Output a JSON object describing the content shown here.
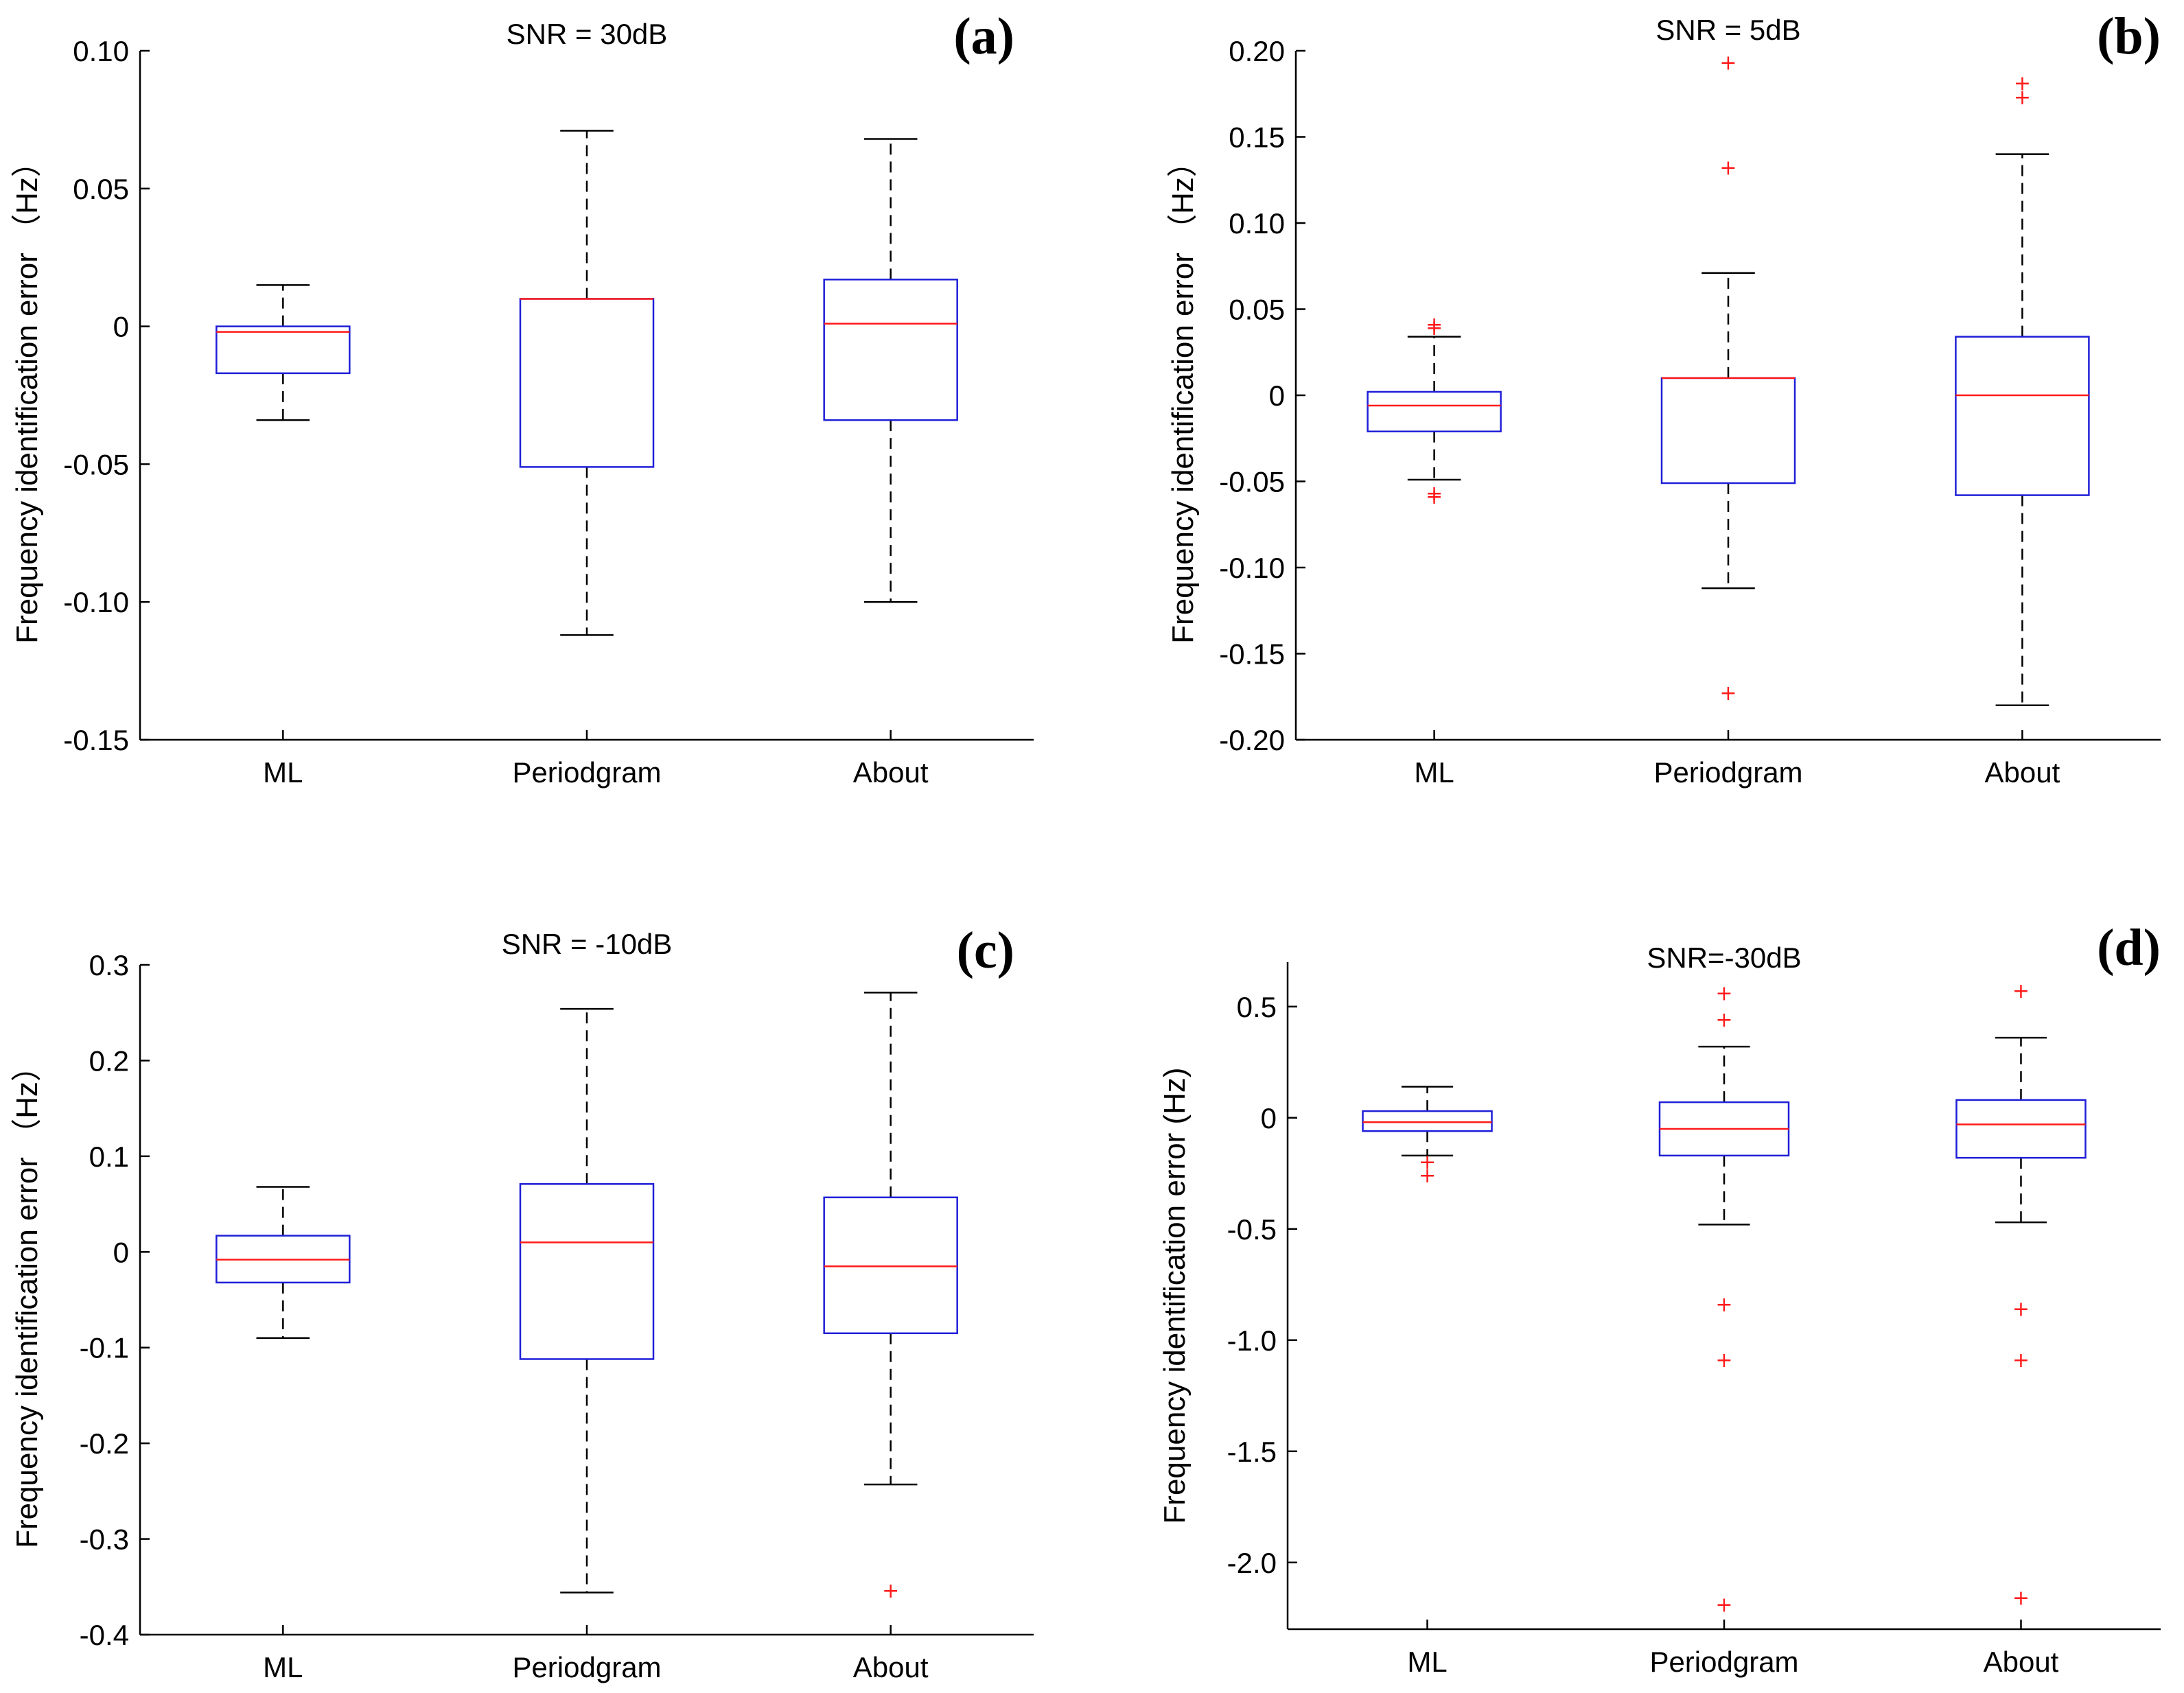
{
  "colors": {
    "box": "#1f1fd8",
    "median": "#ff1a1a",
    "outlier": "#ff1a1a",
    "axis": "#000000"
  },
  "chart_data": [
    {
      "type": "box",
      "panel": "(a)",
      "title": "SNR = 30dB",
      "ylabel": "Frequency identification error   （Hz）",
      "ylim": [
        -0.15,
        0.1
      ],
      "yticks": [
        0.1,
        0.05,
        0,
        -0.05,
        -0.1,
        -0.15
      ],
      "ytick_labels": [
        "0.10",
        "0.05",
        "0",
        "-0.05",
        "-0.10",
        "-0.15"
      ],
      "categories": [
        "ML",
        "Periodgram",
        "About"
      ],
      "boxes": [
        {
          "name": "ML",
          "whisker_low": -0.034,
          "q1": -0.017,
          "median": -0.002,
          "q3": 0.0,
          "whisker_high": 0.015,
          "outliers": []
        },
        {
          "name": "Periodgram",
          "whisker_low": -0.112,
          "q1": -0.051,
          "median": 0.01,
          "q3": 0.01,
          "whisker_high": 0.071,
          "outliers": []
        },
        {
          "name": "About",
          "whisker_low": -0.1,
          "q1": -0.034,
          "median": 0.001,
          "q3": 0.017,
          "whisker_high": 0.068,
          "outliers": []
        }
      ]
    },
    {
      "type": "box",
      "panel": "(b)",
      "title": "SNR = 5dB",
      "ylabel": "Frequency identification error   （Hz）",
      "ylim": [
        -0.2,
        0.2
      ],
      "yticks": [
        0.2,
        0.15,
        0.1,
        0.05,
        0,
        -0.05,
        -0.1,
        -0.15,
        -0.2
      ],
      "ytick_labels": [
        "0.20",
        "0.15",
        "0.10",
        "0.05",
        "0",
        "-0.05",
        "-0.10",
        "-0.15",
        "-0.20"
      ],
      "categories": [
        "ML",
        "Periodgram",
        "About"
      ],
      "boxes": [
        {
          "name": "ML",
          "whisker_low": -0.049,
          "q1": -0.021,
          "median": -0.006,
          "q3": 0.002,
          "whisker_high": 0.034,
          "outliers": [
            0.039,
            0.041,
            -0.057,
            -0.059
          ]
        },
        {
          "name": "Periodgram",
          "whisker_low": -0.112,
          "q1": -0.051,
          "median": 0.01,
          "q3": 0.01,
          "whisker_high": 0.071,
          "outliers": [
            0.193,
            0.132,
            -0.173
          ]
        },
        {
          "name": "About",
          "whisker_low": -0.18,
          "q1": -0.058,
          "median": 0.0,
          "q3": 0.034,
          "whisker_high": 0.14,
          "outliers": [
            0.181,
            0.173
          ]
        }
      ]
    },
    {
      "type": "box",
      "panel": "(c)",
      "title": "SNR = -10dB",
      "ylabel": "Frequency identification error   （Hz）",
      "ylim": [
        -0.4,
        0.3
      ],
      "yticks": [
        0.3,
        0.2,
        0.1,
        0,
        -0.1,
        -0.2,
        -0.3,
        -0.4
      ],
      "ytick_labels": [
        "0.3",
        "0.2",
        "0.1",
        "0",
        "-0.1",
        "-0.2",
        "-0.3",
        "-0.4"
      ],
      "categories": [
        "ML",
        "Periodgram",
        "About"
      ],
      "boxes": [
        {
          "name": "ML",
          "whisker_low": -0.09,
          "q1": -0.032,
          "median": -0.008,
          "q3": 0.017,
          "whisker_high": 0.068,
          "outliers": []
        },
        {
          "name": "Periodgram",
          "whisker_low": -0.356,
          "q1": -0.112,
          "median": 0.01,
          "q3": 0.071,
          "whisker_high": 0.254,
          "outliers": []
        },
        {
          "name": "About",
          "whisker_low": -0.243,
          "q1": -0.085,
          "median": -0.015,
          "q3": 0.057,
          "whisker_high": 0.271,
          "outliers": [
            -0.354
          ]
        }
      ]
    },
    {
      "type": "box",
      "panel": "(d)",
      "title": "SNR=-30dB",
      "ylabel": "Frequency identification error   (Hz)",
      "ylim": [
        -2.3,
        0.7
      ],
      "yticks": [
        0.5,
        0,
        -0.5,
        -1.0,
        -1.5,
        -2.0
      ],
      "ytick_labels": [
        "0.5",
        "0",
        "-0.5",
        "-1.0",
        "-1.5",
        "-2.0"
      ],
      "categories": [
        "ML",
        "Periodgram",
        "About"
      ],
      "boxes": [
        {
          "name": "ML",
          "whisker_low": -0.17,
          "q1": -0.06,
          "median": -0.02,
          "q3": 0.03,
          "whisker_high": 0.14,
          "outliers": [
            -0.2,
            -0.26
          ]
        },
        {
          "name": "Periodgram",
          "whisker_low": -0.48,
          "q1": -0.17,
          "median": -0.05,
          "q3": 0.07,
          "whisker_high": 0.32,
          "outliers": [
            0.56,
            0.44,
            -0.84,
            -1.09,
            -2.19
          ]
        },
        {
          "name": "About",
          "whisker_low": -0.47,
          "q1": -0.18,
          "median": -0.03,
          "q3": 0.08,
          "whisker_high": 0.36,
          "outliers": [
            0.57,
            -0.86,
            -1.09,
            -2.16
          ]
        }
      ]
    }
  ]
}
